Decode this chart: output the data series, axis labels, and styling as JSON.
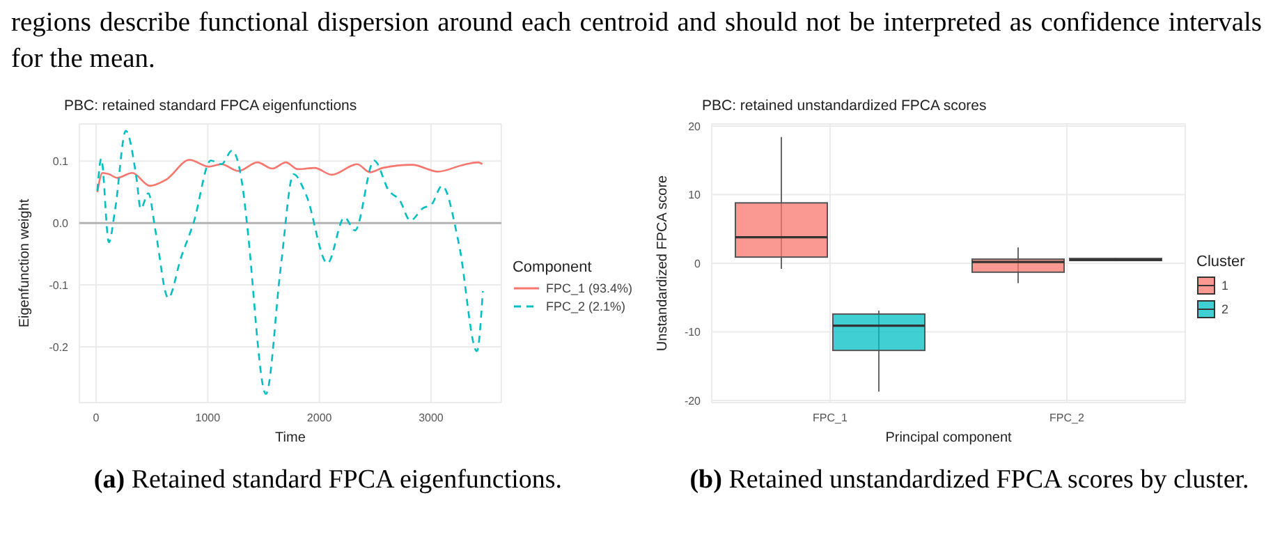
{
  "chart_data": [
    {
      "type": "line",
      "title": "PBC: retained standard FPCA eigenfunctions",
      "xlabel": "Time",
      "ylabel": "Eigenfunction weight",
      "legend_title": "Component",
      "legend": "right",
      "grid": true,
      "marker": "none",
      "xlim": [
        -150,
        3630
      ],
      "xticks": [
        0,
        1000,
        2000,
        3000
      ],
      "ylim": [
        -0.29,
        0.16
      ],
      "yticks": [
        -0.2,
        -0.1,
        {
          "value": 0,
          "label": "0.0"
        },
        0.1
      ],
      "ref_lines": [
        {
          "axis": "y",
          "value": 0,
          "color": "#b3b3b3"
        }
      ],
      "series": [
        {
          "name": "FPC_1 (93.4%)",
          "color": "#f8766d",
          "line_style": "solid",
          "x": [
            11,
            57,
            114,
            190,
            323,
            483,
            627,
            837,
            1008,
            1122,
            1274,
            1445,
            1578,
            1700,
            1806,
            1958,
            2110,
            2338,
            2452,
            2567,
            2833,
            3061,
            3289,
            3422,
            3460
          ],
          "values": [
            0.05,
            0.081,
            0.079,
            0.073,
            0.081,
            0.06,
            0.07,
            0.102,
            0.091,
            0.095,
            0.084,
            0.098,
            0.088,
            0.098,
            0.087,
            0.089,
            0.078,
            0.095,
            0.082,
            0.089,
            0.094,
            0.083,
            0.094,
            0.098,
            0.095
          ]
        },
        {
          "name": "FPC_2 (2.1%)",
          "color": "#00bfc4",
          "line_style": "dashed",
          "x": [
            11,
            46,
            114,
            171,
            266,
            361,
            399,
            468,
            532,
            646,
            760,
            874,
            1027,
            1122,
            1217,
            1312,
            1350,
            1521,
            1654,
            1768,
            1882,
            2072,
            2224,
            2319,
            2490,
            2623,
            2719,
            2814,
            2928,
            3004,
            3099,
            3251,
            3411,
            3464
          ],
          "values": [
            0.052,
            0.104,
            -0.031,
            0.023,
            0.149,
            0.073,
            0.023,
            0.048,
            -0.013,
            -0.121,
            -0.056,
            0.001,
            0.101,
            0.095,
            0.117,
            0.059,
            0.001,
            -0.276,
            -0.071,
            0.079,
            0.045,
            -0.065,
            0.009,
            -0.012,
            0.101,
            0.052,
            0.037,
            0.004,
            0.024,
            0.03,
            0.06,
            -0.035,
            -0.207,
            -0.11
          ]
        }
      ],
      "annotations": [
        "regions describe functional dispersion around each centroid and should not be interpreted as confidence intervals for the mean.",
        "(a) Retained standard FPCA eigenfunctions."
      ]
    },
    {
      "type": "box",
      "title": "PBC: retained unstandardized FPCA scores",
      "xlabel": "Principal component",
      "ylabel": "Unstandardized FPCA score",
      "legend_title": "Cluster",
      "legend": "right",
      "grid": true,
      "categories": [
        "FPC_1",
        "FPC_2"
      ],
      "ylim": [
        -20.3,
        20.3
      ],
      "yticks": [
        -20,
        -10,
        0,
        10,
        20
      ],
      "series": [
        {
          "name": "1",
          "color": "#f8766d",
          "boxes": [
            {
              "low": -0.8,
              "q1": 0.9,
              "median": 3.8,
              "q3": 8.8,
              "high": 18.4
            },
            {
              "low": -2.9,
              "q1": -1.3,
              "median": 0.2,
              "q3": 0.6,
              "high": 2.3
            }
          ]
        },
        {
          "name": "2",
          "color": "#00bfc4",
          "boxes": [
            {
              "low": -18.7,
              "q1": -12.7,
              "median": -9.1,
              "q3": -7.4,
              "high": -6.9
            },
            {
              "low": 0.3,
              "q1": 0.4,
              "median": 0.5,
              "q3": 0.7,
              "high": 0.8
            }
          ]
        }
      ],
      "annotations": [
        "(b) Retained unstandardized FPCA scores by cluster."
      ]
    }
  ]
}
